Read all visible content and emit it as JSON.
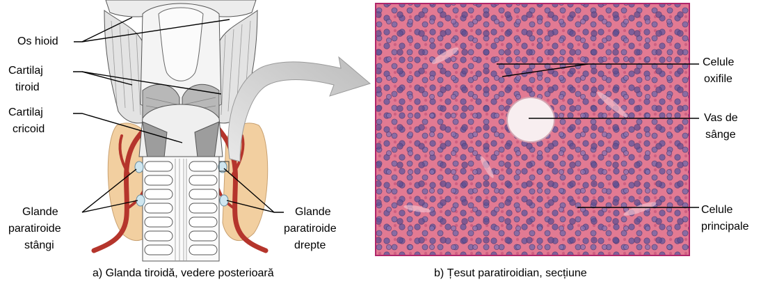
{
  "left_panel": {
    "labels": {
      "hyoid_1": "Os hioid",
      "thyroid_cart_1": "Cartilaj",
      "thyroid_cart_2": "tiroid",
      "cricoid_1": "Cartilaj",
      "cricoid_2": "cricoid",
      "left_glands_1": "Glande",
      "left_glands_2": "paratiroide",
      "left_glands_3": "stângi",
      "right_glands_1": "Glande",
      "right_glands_2": "paratiroide",
      "right_glands_3": "drepte"
    },
    "caption": "a) Glanda tiroidă, vedere posterioară"
  },
  "right_panel": {
    "labels": {
      "oxyphil_1": "Celule",
      "oxyphil_2": "oxifile",
      "vessel_1": "Vas de",
      "vessel_2": "sânge",
      "chief_1": "Celule",
      "chief_2": "principale"
    },
    "caption": "b) Țesut paratiroidian, secțiune"
  },
  "colors": {
    "tissue_bg": "#e27a93",
    "tissue_border": "#b0266a",
    "nucleus": "#6a5a98",
    "thyroid_lobe": "#f2cfa0",
    "artery": "#b5352c",
    "cartilage": "#d9d9d9",
    "arrow_fill": "#cfcfcf"
  }
}
